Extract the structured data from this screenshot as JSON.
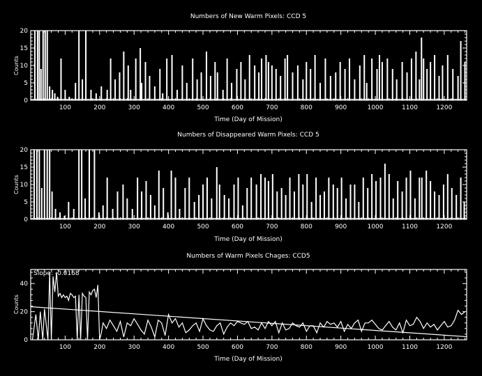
{
  "colors": {
    "background": "#000000",
    "foreground": "#ffffff"
  },
  "chart_data": [
    {
      "type": "bar",
      "title": "Numbers of New Warm Pixels: CCD 5",
      "xlabel": "Time (Day of Mission)",
      "ylabel": "Counts",
      "xlim": [
        0,
        1265
      ],
      "ylim": [
        0,
        20
      ],
      "xticks": [
        100,
        200,
        300,
        400,
        500,
        600,
        700,
        800,
        900,
        1000,
        1100,
        1200
      ],
      "yticks": [
        0,
        5,
        10,
        15,
        20
      ],
      "series": [
        {
          "x": [
            12,
            20,
            25,
            30,
            36,
            42,
            48,
            55,
            63,
            70,
            78,
            88,
            100,
            112,
            130,
            140,
            150,
            160,
            175,
            190,
            205,
            222,
            232,
            245,
            258,
            270,
            283,
            290,
            305,
            318,
            322,
            333,
            345,
            360,
            375,
            383,
            395,
            410,
            425,
            440,
            453,
            470,
            483,
            495,
            510,
            522,
            535,
            542,
            558,
            570,
            583,
            598,
            610,
            622,
            635,
            650,
            662,
            670,
            683,
            690,
            700,
            712,
            725,
            738,
            745,
            760,
            775,
            790,
            800,
            812,
            825,
            840,
            855,
            870,
            885,
            898,
            912,
            925,
            940,
            955,
            968,
            975,
            990,
            1005,
            1012,
            1020,
            1035,
            1050,
            1062,
            1078,
            1092,
            1105,
            1118,
            1128,
            1134,
            1140,
            1150,
            1160,
            1172,
            1185,
            1195,
            1210,
            1225,
            1240,
            1248,
            1260
          ],
          "values": [
            20,
            20,
            20,
            9,
            20,
            20,
            20,
            4,
            3,
            2,
            1,
            12,
            3,
            1,
            5,
            20,
            6,
            20,
            3,
            2,
            4,
            3,
            12,
            6,
            8,
            14,
            10,
            3,
            12,
            15,
            5,
            11,
            7,
            4,
            9,
            2,
            12,
            13,
            3,
            10,
            5,
            12,
            6,
            8,
            14,
            7,
            11,
            8,
            3,
            12,
            5,
            9,
            11,
            6,
            13,
            10,
            8,
            12,
            13,
            11,
            10,
            9,
            7,
            12,
            13,
            8,
            10,
            6,
            11,
            9,
            13,
            5,
            12,
            7,
            8,
            11,
            9,
            12,
            6,
            10,
            13,
            5,
            12,
            9,
            13,
            11,
            12,
            9,
            6,
            11,
            8,
            12,
            14,
            6,
            18,
            12,
            9,
            11,
            13,
            7,
            10,
            13,
            9,
            7,
            17,
            11
          ]
        }
      ]
    },
    {
      "type": "bar",
      "title": "Numbers of Disappeared Warm Pixels: CCD 5",
      "xlabel": "Time (Day of Mission)",
      "ylabel": "Counts",
      "xlim": [
        0,
        1265
      ],
      "ylim": [
        0,
        20
      ],
      "xticks": [
        100,
        200,
        300,
        400,
        500,
        600,
        700,
        800,
        900,
        1000,
        1100,
        1200
      ],
      "yticks": [
        0,
        5,
        10,
        15,
        20
      ],
      "series": [
        {
          "x": [
            10,
            18,
            25,
            32,
            40,
            48,
            55,
            62,
            72,
            85,
            98,
            110,
            125,
            140,
            148,
            158,
            170,
            185,
            198,
            210,
            222,
            238,
            252,
            268,
            280,
            295,
            310,
            322,
            335,
            348,
            360,
            372,
            385,
            398,
            408,
            420,
            432,
            448,
            460,
            475,
            488,
            500,
            512,
            525,
            540,
            548,
            562,
            575,
            590,
            602,
            615,
            628,
            640,
            655,
            668,
            680,
            690,
            702,
            715,
            728,
            740,
            752,
            765,
            778,
            790,
            802,
            815,
            828,
            840,
            852,
            865,
            878,
            890,
            902,
            915,
            928,
            940,
            952,
            965,
            978,
            990,
            1002,
            1015,
            1028,
            1040,
            1052,
            1065,
            1078,
            1090,
            1102,
            1115,
            1128,
            1135,
            1148,
            1160,
            1172,
            1185,
            1198,
            1210,
            1222,
            1235,
            1248,
            1258
          ],
          "values": [
            20,
            20,
            20,
            9,
            20,
            20,
            20,
            8,
            3,
            2,
            1,
            5,
            3,
            20,
            20,
            6,
            20,
            20,
            2,
            4,
            12,
            3,
            8,
            10,
            6,
            3,
            12,
            8,
            11,
            7,
            4,
            14,
            9,
            2,
            14,
            12,
            3,
            9,
            12,
            5,
            7,
            10,
            12,
            6,
            15,
            10,
            7,
            6,
            10,
            12,
            4,
            9,
            12,
            10,
            13,
            12,
            11,
            13,
            8,
            9,
            7,
            12,
            8,
            13,
            10,
            13,
            5,
            12,
            7,
            8,
            12,
            10,
            9,
            12,
            6,
            10,
            10,
            5,
            12,
            9,
            13,
            11,
            12,
            16,
            13,
            6,
            11,
            8,
            12,
            14,
            6,
            12,
            12,
            14,
            11,
            8,
            7,
            10,
            13,
            9,
            7,
            12,
            5
          ]
        }
      ]
    },
    {
      "type": "line",
      "title": "Numbers of Warm Pixels Chages: CCD5",
      "xlabel": "Time (Day of Mission)",
      "ylabel": "Counts",
      "annotation": "Slope: -0.0168",
      "xlim": [
        0,
        1265
      ],
      "ylim": [
        0,
        50
      ],
      "xticks": [
        100,
        200,
        300,
        400,
        500,
        600,
        700,
        800,
        900,
        1000,
        1100,
        1200
      ],
      "yticks": [
        0,
        20,
        40
      ],
      "series": [
        {
          "x": [
            5,
            15,
            22,
            28,
            35,
            40,
            50,
            55,
            60,
            65,
            70,
            75,
            80,
            85,
            90,
            95,
            100,
            105,
            110,
            115,
            120,
            125,
            130,
            135,
            140,
            145,
            150,
            155,
            160,
            165,
            170,
            175,
            180,
            185,
            190,
            195,
            200,
            205,
            210,
            220,
            230,
            240,
            250,
            260,
            270,
            280,
            290,
            300,
            310,
            320,
            330,
            340,
            350,
            360,
            370,
            380,
            390,
            400,
            410,
            420,
            430,
            440,
            450,
            460,
            470,
            480,
            490,
            500,
            510,
            520,
            530,
            540,
            550,
            560,
            570,
            580,
            590,
            600,
            610,
            620,
            630,
            640,
            650,
            660,
            670,
            680,
            690,
            700,
            710,
            720,
            730,
            740,
            750,
            760,
            770,
            780,
            790,
            800,
            810,
            820,
            830,
            840,
            850,
            860,
            870,
            880,
            890,
            900,
            910,
            920,
            930,
            940,
            950,
            960,
            970,
            980,
            990,
            1000,
            1010,
            1020,
            1030,
            1040,
            1050,
            1060,
            1070,
            1080,
            1090,
            1100,
            1110,
            1120,
            1130,
            1140,
            1150,
            1160,
            1170,
            1180,
            1190,
            1200,
            1210,
            1220,
            1230,
            1240,
            1250,
            1260
          ],
          "values": [
            0,
            18,
            0,
            20,
            0,
            22,
            0,
            48,
            0,
            45,
            34,
            48,
            31,
            33,
            30,
            32,
            30,
            31,
            28,
            33,
            32,
            30,
            31,
            0,
            32,
            0,
            33,
            31,
            30,
            0,
            34,
            32,
            35,
            36,
            30,
            39,
            0,
            5,
            12,
            8,
            14,
            10,
            6,
            13,
            2,
            12,
            10,
            15,
            11,
            7,
            4,
            14,
            9,
            2,
            14,
            12,
            3,
            18,
            12,
            15,
            9,
            12,
            5,
            7,
            10,
            12,
            6,
            15,
            10,
            7,
            6,
            10,
            12,
            4,
            9,
            12,
            10,
            13,
            12,
            11,
            13,
            8,
            9,
            7,
            12,
            8,
            13,
            10,
            13,
            5,
            12,
            7,
            8,
            12,
            10,
            9,
            12,
            6,
            10,
            10,
            5,
            12,
            9,
            13,
            11,
            12,
            9,
            13,
            6,
            11,
            8,
            12,
            14,
            6,
            12,
            12,
            14,
            11,
            8,
            7,
            10,
            13,
            9,
            7,
            12,
            5,
            14,
            10,
            11,
            16,
            13,
            8,
            12,
            9,
            11,
            7,
            10,
            13,
            9,
            10,
            14,
            21,
            18,
            20
          ]
        }
      ],
      "trend": {
        "x": [
          0,
          1265
        ],
        "y": [
          23.5,
          2.2
        ]
      }
    }
  ]
}
